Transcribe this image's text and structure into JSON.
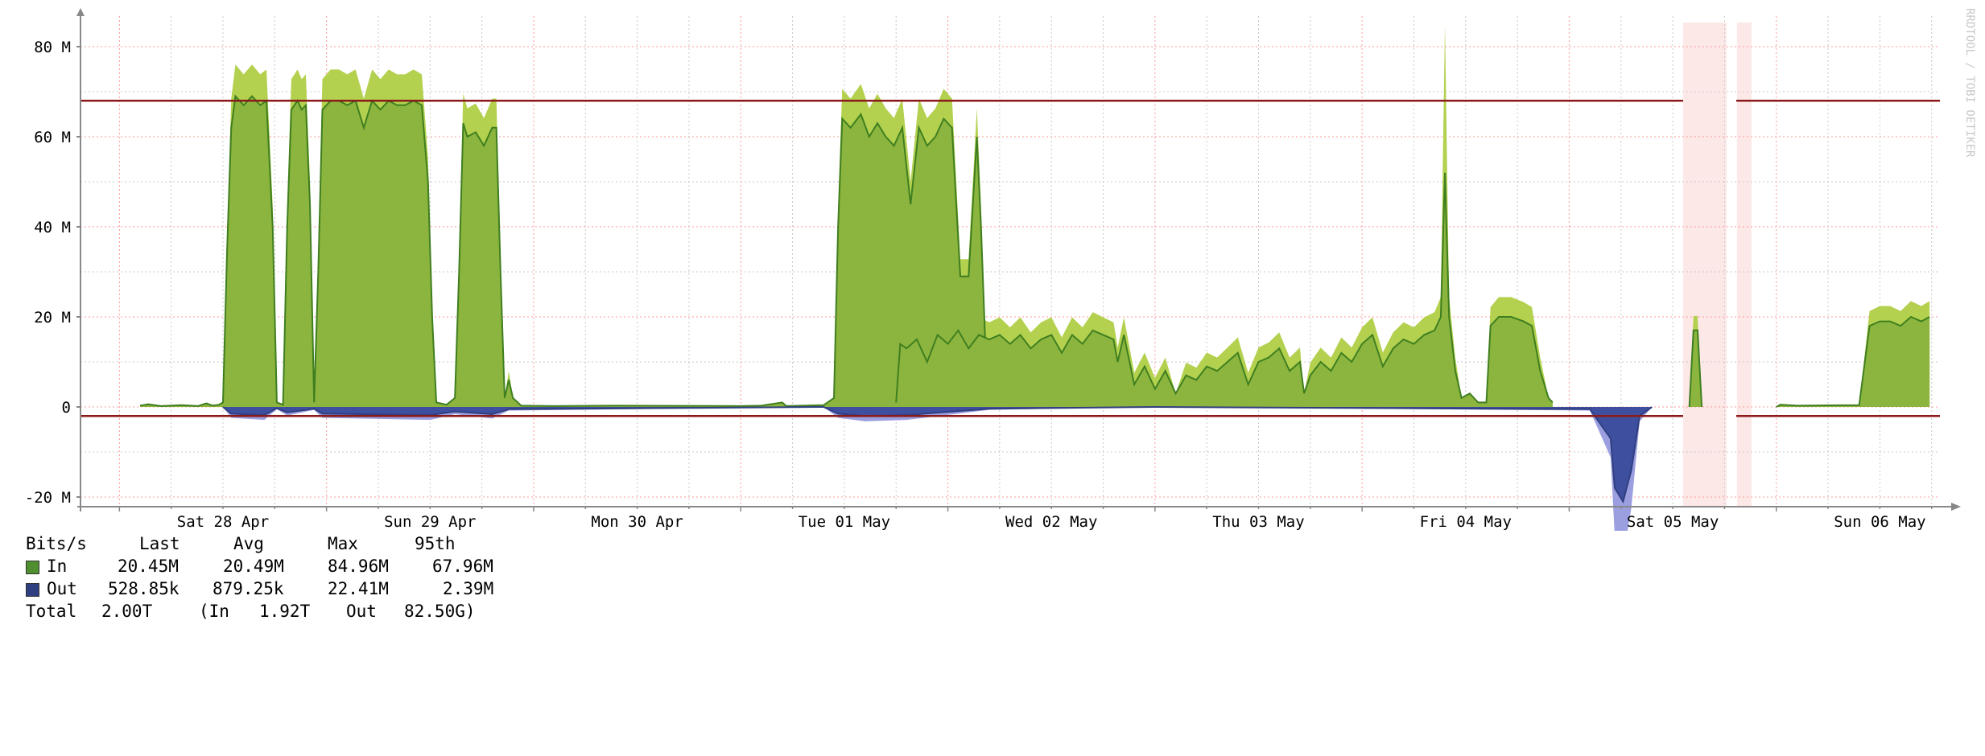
{
  "colors": {
    "in_line": "#3f7f1f",
    "in_fill": "#8cb53f",
    "in_peak": "#b3d14f",
    "out_line": "#2f3f7f",
    "out_fill": "#3f4f9f",
    "out_peak": "#9b9fe0",
    "threshold": "#8b1a1a",
    "grid_major": "#ff9999",
    "grid_minor": "#c8c8c8",
    "unknown_band": "#fde8e8"
  },
  "chart_data": {
    "type": "area",
    "ylim": [
      -22000000,
      88000000
    ],
    "yticks": [
      {
        "value": 80000000,
        "label": "80 M"
      },
      {
        "value": 60000000,
        "label": "60 M"
      },
      {
        "value": 40000000,
        "label": "40 M"
      },
      {
        "value": 20000000,
        "label": "20 M"
      },
      {
        "value": 0,
        "label": "0"
      },
      {
        "value": -20000000,
        "label": "-20 M"
      }
    ],
    "xlim": [
      -3.6,
      8.4
    ],
    "xticks": [
      {
        "value": 0,
        "label": "Sat 28 Apr"
      },
      {
        "value": 1,
        "label": "Sun 29 Apr"
      },
      {
        "value": 2,
        "label": "Mon 30 Apr"
      },
      {
        "value": 3,
        "label": "Tue 01 May"
      },
      {
        "value": 4,
        "label": "Wed 02 May"
      },
      {
        "value": 5,
        "label": "Thu 03 May"
      },
      {
        "value": 6,
        "label": "Fri 04 May"
      },
      {
        "value": 7,
        "label": "Sat 05 May"
      },
      {
        "value": 8,
        "label": "Sun 06 May"
      }
    ],
    "thresholds": [
      68000000,
      -2000000
    ],
    "unknown_ranges": [
      [
        7.05,
        7.26
      ],
      [
        7.31,
        7.38
      ]
    ],
    "series": [
      {
        "name": "In",
        "points": [
          [
            -0.4,
            0.3
          ],
          [
            -0.36,
            0.6
          ],
          [
            -0.3,
            0.2
          ],
          [
            -0.2,
            0.4
          ],
          [
            -0.12,
            0.2
          ],
          [
            -0.08,
            0.8
          ],
          [
            -0.05,
            0.3
          ],
          [
            -0.02,
            0.5
          ],
          [
            0.0,
            1
          ],
          [
            0.02,
            35
          ],
          [
            0.04,
            62
          ],
          [
            0.06,
            69
          ],
          [
            0.1,
            67
          ],
          [
            0.14,
            69
          ],
          [
            0.18,
            67
          ],
          [
            0.21,
            68
          ],
          [
            0.24,
            40
          ],
          [
            0.26,
            1
          ],
          [
            0.29,
            0.5
          ],
          [
            0.31,
            40
          ],
          [
            0.33,
            66
          ],
          [
            0.36,
            68
          ],
          [
            0.38,
            66
          ],
          [
            0.4,
            67
          ],
          [
            0.42,
            45
          ],
          [
            0.44,
            1
          ],
          [
            0.46,
            30
          ],
          [
            0.48,
            66
          ],
          [
            0.52,
            68
          ],
          [
            0.56,
            68
          ],
          [
            0.6,
            67
          ],
          [
            0.64,
            68
          ],
          [
            0.68,
            62
          ],
          [
            0.72,
            68
          ],
          [
            0.76,
            66
          ],
          [
            0.8,
            68
          ],
          [
            0.84,
            67
          ],
          [
            0.88,
            67
          ],
          [
            0.92,
            68
          ],
          [
            0.96,
            67
          ],
          [
            0.99,
            50
          ],
          [
            1.01,
            20
          ],
          [
            1.03,
            1
          ],
          [
            1.08,
            0.5
          ],
          [
            1.12,
            2
          ],
          [
            1.14,
            30
          ],
          [
            1.16,
            63
          ],
          [
            1.18,
            60
          ],
          [
            1.22,
            61
          ],
          [
            1.26,
            58
          ],
          [
            1.3,
            62
          ],
          [
            1.32,
            62
          ],
          [
            1.34,
            30
          ],
          [
            1.36,
            2
          ],
          [
            1.38,
            6
          ],
          [
            1.4,
            2
          ],
          [
            1.44,
            0.3
          ],
          [
            1.6,
            0.2
          ],
          [
            1.9,
            0.3
          ],
          [
            2.5,
            0.2
          ],
          [
            2.6,
            0.3
          ],
          [
            2.7,
            1
          ],
          [
            2.72,
            0.2
          ],
          [
            2.9,
            0.4
          ],
          [
            2.95,
            2
          ],
          [
            2.97,
            40
          ],
          [
            2.99,
            64
          ],
          [
            3.03,
            62
          ],
          [
            3.08,
            65
          ],
          [
            3.12,
            60
          ],
          [
            3.16,
            63
          ],
          [
            3.2,
            60
          ],
          [
            3.24,
            58
          ],
          [
            3.28,
            62
          ],
          [
            3.32,
            45
          ],
          [
            3.36,
            62
          ],
          [
            3.4,
            58
          ],
          [
            3.44,
            60
          ],
          [
            3.48,
            64
          ],
          [
            3.52,
            62
          ],
          [
            3.56,
            29
          ],
          [
            3.6,
            29
          ],
          [
            3.64,
            60
          ],
          [
            3.66,
            40
          ],
          [
            3.68,
            15
          ],
          [
            3.7,
            1
          ],
          [
            3.72,
            0.5
          ]
        ],
        "values_unit_M": true
      },
      {
        "name": "Out",
        "values_unit_M": true,
        "points": [
          [
            0.0,
            0
          ],
          [
            0.04,
            -1.5
          ],
          [
            0.2,
            -1.8
          ],
          [
            0.26,
            -0.3
          ],
          [
            0.31,
            -1.2
          ],
          [
            0.44,
            -0.4
          ],
          [
            0.48,
            -1.5
          ],
          [
            1.0,
            -1.8
          ],
          [
            1.12,
            -1.0
          ],
          [
            1.3,
            -1.6
          ],
          [
            1.38,
            -0.5
          ],
          [
            2.9,
            0
          ],
          [
            2.97,
            -1.5
          ],
          [
            3.1,
            -2.0
          ],
          [
            3.3,
            -1.8
          ],
          [
            3.7,
            -0.4
          ],
          [
            4.5,
            0
          ]
        ]
      }
    ]
  },
  "legend": {
    "header": {
      "name": "Bits/s",
      "last": "Last",
      "avg": "Avg",
      "max": "Max",
      "p95": "95th"
    },
    "rows": [
      {
        "name": "In",
        "last": "20.45M",
        "avg": "20.49M",
        "max": "84.96M",
        "p95": "67.96M"
      },
      {
        "name": "Out",
        "last": "528.85k",
        "avg": "879.25k",
        "max": "22.41M",
        "p95": "2.39M"
      }
    ],
    "total": {
      "label": "Total",
      "value": "2.00T",
      "in_label": "(In",
      "in_value": "1.92T",
      "out_label": "Out",
      "out_value": "82.50G)"
    }
  },
  "watermark": "RRDTOOL / TOBI OETIKER"
}
